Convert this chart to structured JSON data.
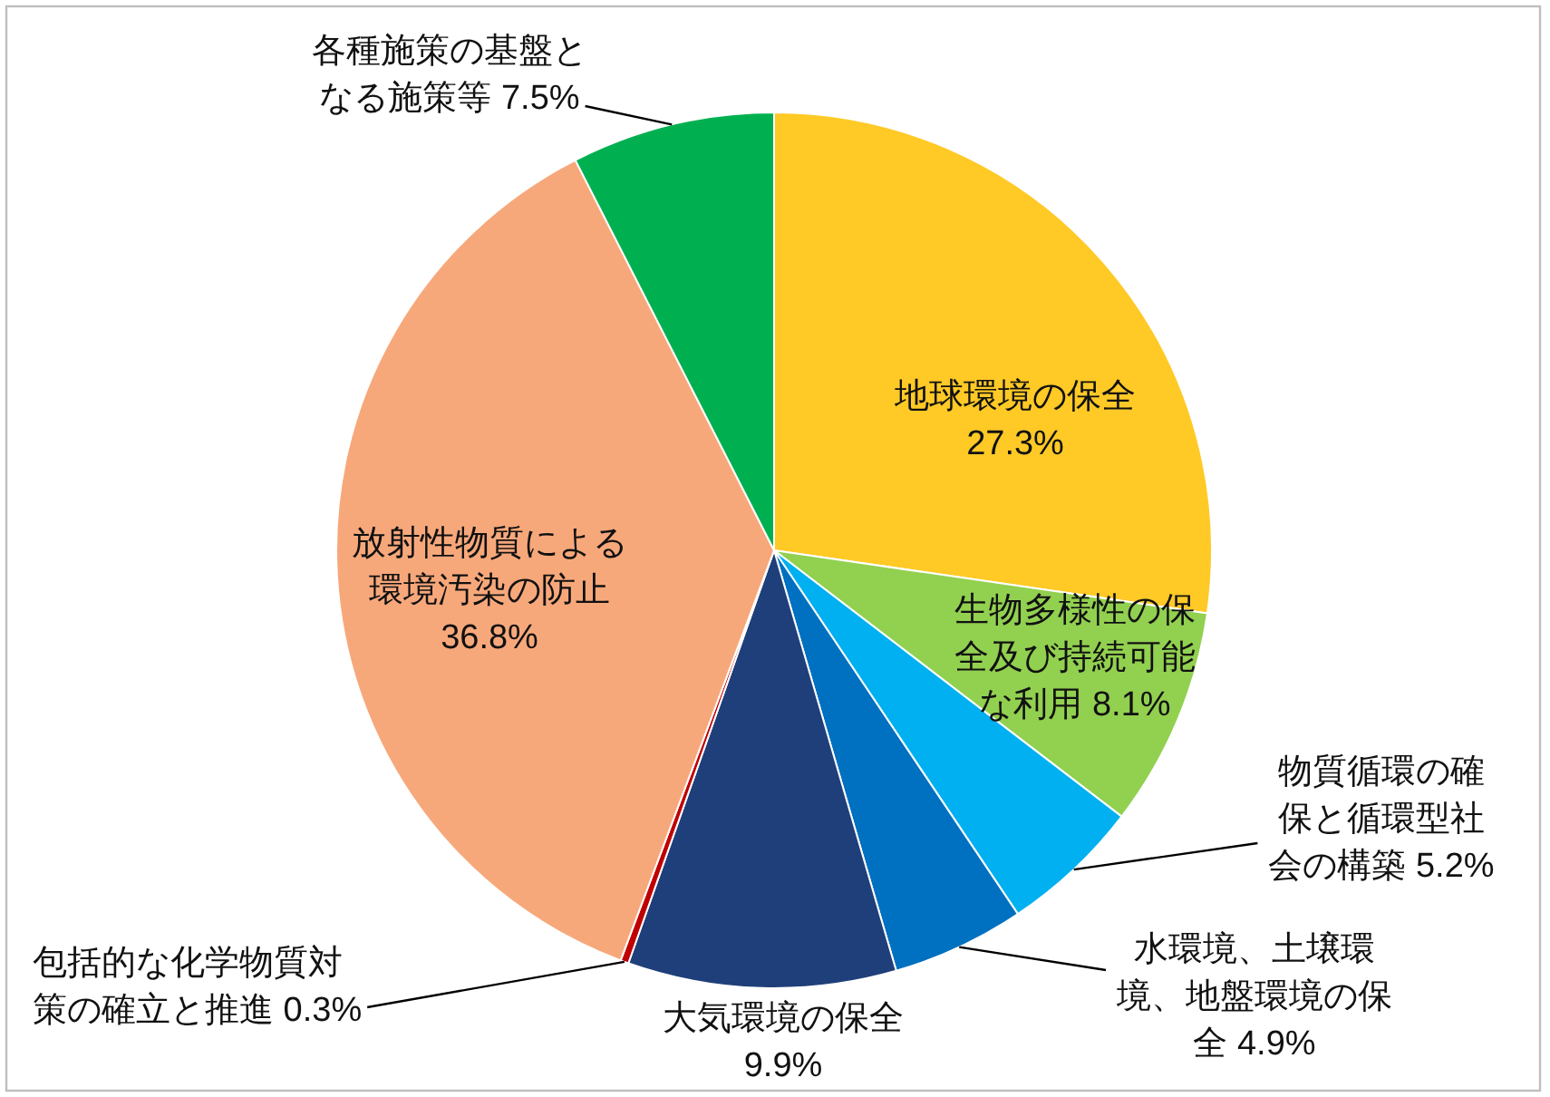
{
  "chart_data": {
    "type": "pie",
    "categories": [
      "地球環境の保全",
      "生物多様性の保全及び持続可能な利用",
      "物質循環の確保と循環型社会の構築",
      "水環境、土壌環境、地盤環境の保全",
      "大気環境の保全",
      "包括的な化学物質対策の確立と推進",
      "放射性物質による環境汚染の防止",
      "各種施策の基盤となる施策等"
    ],
    "values": [
      27.3,
      8.1,
      5.2,
      4.9,
      9.9,
      0.3,
      36.8,
      7.5
    ],
    "colors": [
      "#ffc926",
      "#92d050",
      "#00b0f0",
      "#0070c0",
      "#1f3f7a",
      "#c00000",
      "#f7a87b",
      "#00b050"
    ],
    "value_labels": [
      "27.3%",
      "8.1%",
      "5.2%",
      "4.9%",
      "9.9%",
      "0.3%",
      "36.8%",
      "7.5%"
    ]
  }
}
